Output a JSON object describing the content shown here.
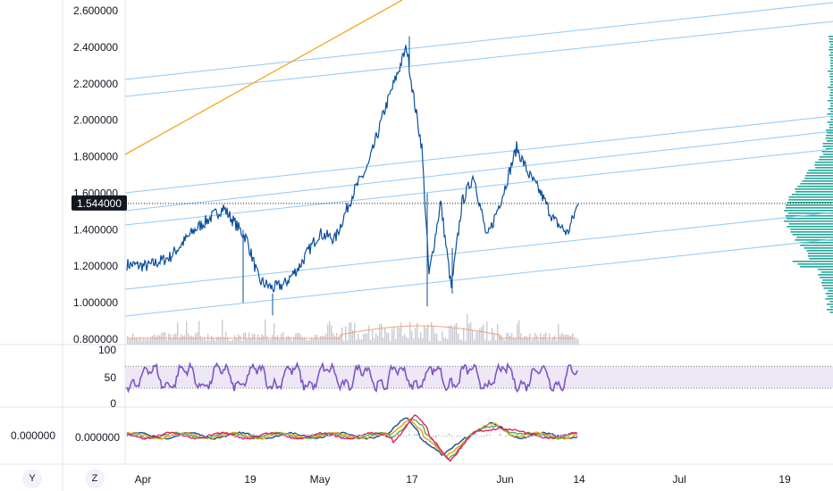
{
  "chart_data": {
    "type": "line",
    "price_axis": {
      "ticks": [
        "2.600000",
        "2.400000",
        "2.200000",
        "2.000000",
        "1.800000",
        "1.600000",
        "1.400000",
        "1.200000",
        "1.000000",
        "0.800000"
      ],
      "range": [
        0.78,
        2.65
      ],
      "current_value": "1.544000"
    },
    "time_axis": {
      "ticks": [
        "Apr",
        "19",
        "May",
        "17",
        "Jun",
        "14",
        "Jul",
        "19"
      ]
    },
    "price_series": {
      "color": "#0b4f9c",
      "anchors": [
        [
          "Apr",
          1.21
        ],
        [
          "Apr 5",
          1.2
        ],
        [
          "Apr 9",
          1.25
        ],
        [
          "Apr 13",
          1.4
        ],
        [
          "Apr 16",
          1.52
        ],
        [
          "19",
          1.35
        ],
        [
          "Apr 21",
          1.12
        ],
        [
          "Apr 24",
          1.08
        ],
        [
          "Apr 26",
          1.1
        ],
        [
          "Apr 28",
          1.2
        ],
        [
          "May",
          1.38
        ],
        [
          "May 3",
          1.35
        ],
        [
          "May 6",
          1.6
        ],
        [
          "May 9",
          1.75
        ],
        [
          "May 12",
          2.05
        ],
        [
          "May 15",
          2.4
        ],
        [
          "17",
          2.15
        ],
        [
          "May 18",
          1.85
        ],
        [
          "May 19",
          1.15
        ],
        [
          "May 21",
          1.55
        ],
        [
          "May 23",
          1.08
        ],
        [
          "May 25",
          1.55
        ],
        [
          "May 27",
          1.7
        ],
        [
          "May 30",
          1.35
        ],
        [
          "Jun",
          1.6
        ],
        [
          "Jun 3",
          1.85
        ],
        [
          "Jun 5",
          1.7
        ],
        [
          "Jun 7",
          1.6
        ],
        [
          "Jun 9",
          1.45
        ],
        [
          "Jun 11",
          1.38
        ],
        [
          "14",
          1.544
        ]
      ]
    },
    "trend_lines": {
      "color": "#90caf9",
      "count": 7
    },
    "orange_line": {
      "color": "#f5a623"
    },
    "volume": {
      "bar_color": "#c8cbd2",
      "ma_color": "#f4a27a"
    },
    "rsi": {
      "ticks": [
        "100",
        "50",
        "0"
      ],
      "upper": 70,
      "lower": 30,
      "line_color": "#7e57c2",
      "band_color": "#ede7f6"
    },
    "macd": {
      "tick": "0.000000",
      "left_value": "0.000000",
      "line_colors": [
        "#0b4f9c",
        "#ff9800",
        "#4caf50",
        "#e91e63"
      ]
    },
    "volume_profile": {
      "color": "#26a69a"
    }
  },
  "corner_buttons": {
    "y": "Y",
    "z": "Z"
  }
}
